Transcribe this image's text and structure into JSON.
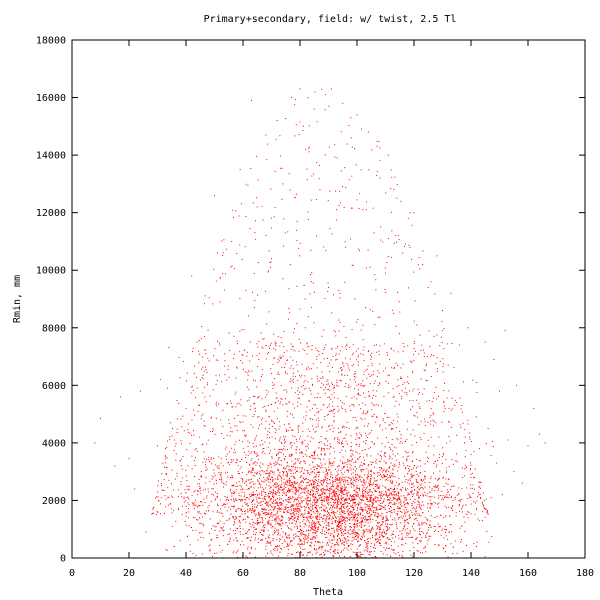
{
  "chart_data": {
    "type": "scatter",
    "title": "Primary+secondary, field: w/ twist, 2.5 Tl",
    "xlabel": "Theta",
    "ylabel": "Rmin, mm",
    "xlim": [
      0,
      180
    ],
    "ylim": [
      0,
      18000
    ],
    "x_ticks": [
      "0",
      "20",
      "40",
      "60",
      "80",
      "100",
      "120",
      "140",
      "160",
      "180"
    ],
    "y_ticks": [
      "0",
      "2000",
      "4000",
      "6000",
      "8000",
      "10000",
      "12000",
      "14000",
      "16000",
      "18000"
    ],
    "grid": false,
    "legend": "none",
    "point_color": "#ff0000",
    "series": [
      {
        "distribution": "dense band around Rmin 500-3000 spanning Theta 35-145, peaking near Theta 90; sparse envelope rising to ~16300 at Theta 80-95; scattered outliers near Theta 10-25 and 150-165",
        "points": [
          [
            8,
            4000
          ],
          [
            10,
            4850
          ],
          [
            15,
            3200
          ],
          [
            17,
            5600
          ],
          [
            20,
            3450
          ],
          [
            22,
            2400
          ],
          [
            24,
            5800
          ],
          [
            26,
            900
          ],
          [
            30,
            3900
          ],
          [
            31,
            6200
          ],
          [
            33,
            300
          ],
          [
            34,
            2700
          ],
          [
            36,
            4100
          ],
          [
            38,
            600
          ],
          [
            40,
            5200
          ],
          [
            41,
            1600
          ],
          [
            42,
            9800
          ],
          [
            44,
            2200
          ],
          [
            46,
            700
          ],
          [
            47,
            7100
          ],
          [
            48,
            3500
          ],
          [
            50,
            12600
          ],
          [
            51,
            1200
          ],
          [
            52,
            8900
          ],
          [
            53,
            2600
          ],
          [
            55,
            4800
          ],
          [
            56,
            11000
          ],
          [
            57,
            1800
          ],
          [
            58,
            6600
          ],
          [
            59,
            13500
          ],
          [
            60,
            2400
          ],
          [
            61,
            9300
          ],
          [
            62,
            700
          ],
          [
            63,
            15900
          ],
          [
            64,
            3700
          ],
          [
            65,
            12200
          ],
          [
            66,
            1500
          ],
          [
            67,
            7600
          ],
          [
            68,
            14700
          ],
          [
            69,
            2100
          ],
          [
            70,
            10400
          ],
          [
            71,
            5100
          ],
          [
            72,
            15200
          ],
          [
            73,
            800
          ],
          [
            74,
            13000
          ],
          [
            75,
            3100
          ],
          [
            76,
            8300
          ],
          [
            77,
            16000
          ],
          [
            78,
            1300
          ],
          [
            79,
            11700
          ],
          [
            80,
            16300
          ],
          [
            81,
            4400
          ],
          [
            82,
            14200
          ],
          [
            83,
            200
          ],
          [
            84,
            9600
          ],
          [
            85,
            15600
          ],
          [
            86,
            2000
          ],
          [
            87,
            12800
          ],
          [
            88,
            6300
          ],
          [
            89,
            16100
          ],
          [
            90,
            1000
          ],
          [
            91,
            16300
          ],
          [
            92,
            7900
          ],
          [
            93,
            13900
          ],
          [
            94,
            2700
          ],
          [
            95,
            15800
          ],
          [
            96,
            10800
          ],
          [
            97,
            400
          ],
          [
            98,
            14600
          ],
          [
            99,
            5600
          ],
          [
            100,
            15400
          ],
          [
            101,
            1700
          ],
          [
            102,
            12100
          ],
          [
            103,
            8700
          ],
          [
            104,
            14800
          ],
          [
            105,
            2300
          ],
          [
            106,
            11300
          ],
          [
            107,
            4900
          ],
          [
            108,
            13200
          ],
          [
            109,
            900
          ],
          [
            110,
            9900
          ],
          [
            111,
            14000
          ],
          [
            112,
            3300
          ],
          [
            113,
            7200
          ],
          [
            114,
            12500
          ],
          [
            115,
            1400
          ],
          [
            116,
            10600
          ],
          [
            117,
            5900
          ],
          [
            118,
            11800
          ],
          [
            119,
            2900
          ],
          [
            120,
            12000
          ],
          [
            121,
            8100
          ],
          [
            122,
            600
          ],
          [
            123,
            10200
          ],
          [
            124,
            4600
          ],
          [
            125,
            9400
          ],
          [
            126,
            1900
          ],
          [
            127,
            7700
          ],
          [
            128,
            10500
          ],
          [
            129,
            3600
          ],
          [
            130,
            8600
          ],
          [
            131,
            1100
          ],
          [
            132,
            6700
          ],
          [
            133,
            9200
          ],
          [
            134,
            2500
          ],
          [
            135,
            5400
          ],
          [
            136,
            7400
          ],
          [
            137,
            1600
          ],
          [
            138,
            4200
          ],
          [
            139,
            8000
          ],
          [
            140,
            2800
          ],
          [
            141,
            500
          ],
          [
            142,
            6100
          ],
          [
            143,
            3800
          ],
          [
            144,
            1300
          ],
          [
            145,
            7500
          ],
          [
            146,
            4500
          ],
          [
            147,
            2100
          ],
          [
            148,
            6900
          ],
          [
            149,
            3300
          ],
          [
            150,
            5800
          ],
          [
            151,
            2200
          ],
          [
            152,
            7900
          ],
          [
            153,
            4100
          ],
          [
            155,
            3000
          ],
          [
            156,
            6000
          ],
          [
            158,
            2600
          ],
          [
            160,
            3900
          ],
          [
            162,
            5200
          ],
          [
            164,
            4300
          ],
          [
            166,
            4000
          ]
        ]
      }
    ]
  }
}
